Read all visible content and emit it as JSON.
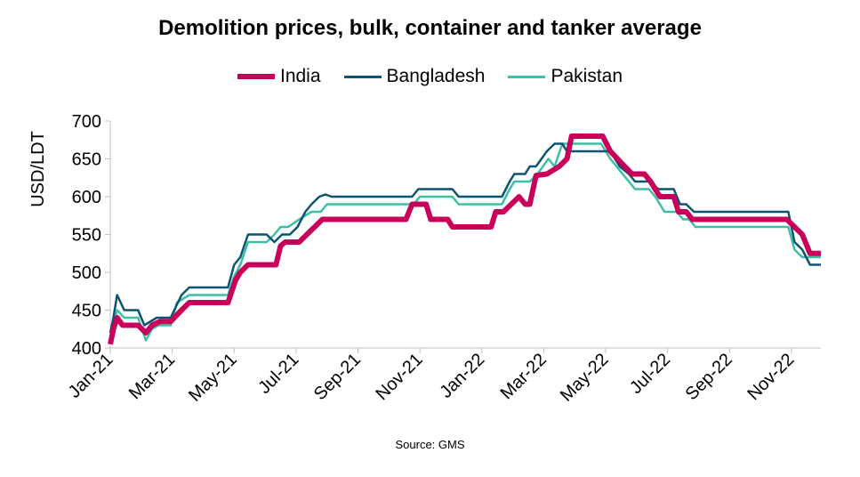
{
  "chart_data": {
    "type": "line",
    "title": "Demolition prices, bulk, container and tanker average",
    "ylabel": "USD/LDT",
    "xlabel": "",
    "source": "Source: GMS",
    "ylim": [
      400,
      700
    ],
    "yticks": [
      400,
      450,
      500,
      550,
      600,
      650,
      700
    ],
    "xlim": [
      0,
      22.95
    ],
    "xtick_labels": [
      "Jan-21",
      "Mar-21",
      "May-21",
      "Jul-21",
      "Sep-21",
      "Nov-21",
      "Jan-22",
      "Mar-22",
      "May-22",
      "Jul-22",
      "Sep-22",
      "Nov-22"
    ],
    "xtick_positions": [
      0,
      2,
      4,
      6,
      8,
      10,
      12,
      14,
      16,
      18,
      20,
      22
    ],
    "grid": false,
    "legend_position": "top",
    "series": [
      {
        "name": "India",
        "color": "#C8005A",
        "points": [
          [
            0,
            405
          ],
          [
            0.1,
            425
          ],
          [
            0.22,
            440
          ],
          [
            0.4,
            430
          ],
          [
            0.9,
            430
          ],
          [
            1.15,
            420
          ],
          [
            1.35,
            430
          ],
          [
            1.6,
            435
          ],
          [
            1.95,
            435
          ],
          [
            2.3,
            450
          ],
          [
            2.55,
            460
          ],
          [
            3.8,
            460
          ],
          [
            4.05,
            490
          ],
          [
            4.2,
            500
          ],
          [
            4.45,
            510
          ],
          [
            5.35,
            510
          ],
          [
            5.5,
            535
          ],
          [
            5.65,
            540
          ],
          [
            6.1,
            540
          ],
          [
            6.6,
            560
          ],
          [
            6.85,
            570
          ],
          [
            9.55,
            570
          ],
          [
            9.75,
            590
          ],
          [
            10.2,
            590
          ],
          [
            10.35,
            570
          ],
          [
            10.9,
            570
          ],
          [
            11.05,
            560
          ],
          [
            12.3,
            560
          ],
          [
            12.45,
            580
          ],
          [
            12.7,
            580
          ],
          [
            12.95,
            590
          ],
          [
            13.2,
            600
          ],
          [
            13.4,
            590
          ],
          [
            13.55,
            590
          ],
          [
            13.75,
            628
          ],
          [
            14.1,
            630
          ],
          [
            14.5,
            640
          ],
          [
            14.75,
            650
          ],
          [
            14.9,
            680
          ],
          [
            15.9,
            680
          ],
          [
            16.15,
            660
          ],
          [
            16.5,
            645
          ],
          [
            16.85,
            630
          ],
          [
            17.25,
            630
          ],
          [
            17.45,
            620
          ],
          [
            17.75,
            600
          ],
          [
            18.2,
            600
          ],
          [
            18.35,
            580
          ],
          [
            18.6,
            580
          ],
          [
            18.8,
            570
          ],
          [
            21.85,
            570
          ],
          [
            22.1,
            560
          ],
          [
            22.35,
            550
          ],
          [
            22.6,
            525
          ],
          [
            22.95,
            525
          ]
        ]
      },
      {
        "name": "Bangladesh",
        "color": "#0B5572",
        "points": [
          [
            0,
            420
          ],
          [
            0.1,
            440
          ],
          [
            0.22,
            470
          ],
          [
            0.45,
            450
          ],
          [
            0.9,
            450
          ],
          [
            1.1,
            430
          ],
          [
            1.5,
            440
          ],
          [
            1.95,
            440
          ],
          [
            2.3,
            470
          ],
          [
            2.55,
            480
          ],
          [
            3.8,
            480
          ],
          [
            4.0,
            510
          ],
          [
            4.2,
            520
          ],
          [
            4.45,
            550
          ],
          [
            5.05,
            550
          ],
          [
            5.3,
            540
          ],
          [
            5.55,
            550
          ],
          [
            5.8,
            550
          ],
          [
            6.05,
            560
          ],
          [
            6.3,
            580
          ],
          [
            6.5,
            590
          ],
          [
            6.75,
            600
          ],
          [
            6.95,
            603
          ],
          [
            7.15,
            600
          ],
          [
            9.75,
            600
          ],
          [
            9.95,
            610
          ],
          [
            11.05,
            610
          ],
          [
            11.25,
            600
          ],
          [
            12.65,
            600
          ],
          [
            12.9,
            620
          ],
          [
            13.05,
            630
          ],
          [
            13.4,
            630
          ],
          [
            13.55,
            640
          ],
          [
            13.75,
            640
          ],
          [
            14.1,
            660
          ],
          [
            14.35,
            670
          ],
          [
            14.6,
            670
          ],
          [
            14.75,
            660
          ],
          [
            16.15,
            660
          ],
          [
            16.45,
            640
          ],
          [
            16.75,
            630
          ],
          [
            16.95,
            620
          ],
          [
            17.45,
            620
          ],
          [
            17.7,
            610
          ],
          [
            18.2,
            610
          ],
          [
            18.4,
            590
          ],
          [
            18.6,
            590
          ],
          [
            18.85,
            580
          ],
          [
            21.9,
            580
          ],
          [
            22.1,
            540
          ],
          [
            22.35,
            530
          ],
          [
            22.6,
            510
          ],
          [
            22.95,
            510
          ]
        ]
      },
      {
        "name": "Pakistan",
        "color": "#3DBFA6",
        "points": [
          [
            0,
            410
          ],
          [
            0.1,
            430
          ],
          [
            0.22,
            450
          ],
          [
            0.45,
            440
          ],
          [
            0.9,
            440
          ],
          [
            1.15,
            410
          ],
          [
            1.35,
            425
          ],
          [
            1.55,
            430
          ],
          [
            1.95,
            430
          ],
          [
            2.15,
            460
          ],
          [
            2.55,
            470
          ],
          [
            3.8,
            470
          ],
          [
            4.0,
            495
          ],
          [
            4.2,
            510
          ],
          [
            4.45,
            540
          ],
          [
            5.05,
            540
          ],
          [
            5.3,
            550
          ],
          [
            5.5,
            560
          ],
          [
            5.75,
            560
          ],
          [
            6.1,
            570
          ],
          [
            6.3,
            575
          ],
          [
            6.5,
            580
          ],
          [
            6.8,
            580
          ],
          [
            7.0,
            590
          ],
          [
            9.8,
            590
          ],
          [
            10.0,
            600
          ],
          [
            11.05,
            600
          ],
          [
            11.25,
            590
          ],
          [
            12.65,
            590
          ],
          [
            12.9,
            610
          ],
          [
            13.05,
            620
          ],
          [
            13.4,
            620
          ],
          [
            13.55,
            620
          ],
          [
            13.8,
            630
          ],
          [
            14.15,
            650
          ],
          [
            14.35,
            640
          ],
          [
            14.6,
            670
          ],
          [
            15.85,
            670
          ],
          [
            16.15,
            650
          ],
          [
            16.45,
            635
          ],
          [
            16.75,
            620
          ],
          [
            16.95,
            610
          ],
          [
            17.4,
            610
          ],
          [
            17.6,
            600
          ],
          [
            17.9,
            580
          ],
          [
            18.3,
            580
          ],
          [
            18.5,
            570
          ],
          [
            18.7,
            570
          ],
          [
            18.9,
            560
          ],
          [
            21.9,
            560
          ],
          [
            22.1,
            530
          ],
          [
            22.35,
            520
          ],
          [
            22.6,
            520
          ],
          [
            22.95,
            520
          ]
        ]
      }
    ]
  }
}
